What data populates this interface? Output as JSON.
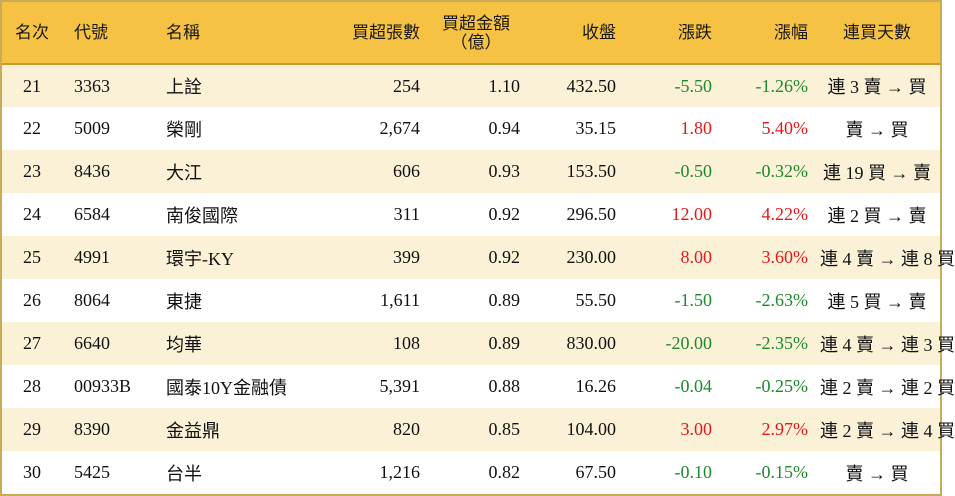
{
  "header": {
    "rank": "名次",
    "code": "代號",
    "name": "名稱",
    "net_buy_lots": "買超張數",
    "net_buy_amount_line1": "買超金額",
    "net_buy_amount_line2": "（億）",
    "close": "收盤",
    "change": "漲跌",
    "change_pct": "漲幅",
    "streak": "連買天數"
  },
  "colors": {
    "header_bg": "#f5c243",
    "stripe_bg": "#fbf1d7",
    "up": "#e4191c",
    "down": "#1d8a2c"
  },
  "rows": [
    {
      "rank": "21",
      "code": "3363",
      "name": "上詮",
      "lots": "254",
      "amount": "1.10",
      "close": "432.50",
      "change": "-5.50",
      "pct": "-1.26%",
      "streak": "連 3 賣 → 買",
      "dir": "down"
    },
    {
      "rank": "22",
      "code": "5009",
      "name": "榮剛",
      "lots": "2,674",
      "amount": "0.94",
      "close": "35.15",
      "change": "1.80",
      "pct": "5.40%",
      "streak": "賣 → 買",
      "dir": "up"
    },
    {
      "rank": "23",
      "code": "8436",
      "name": "大江",
      "lots": "606",
      "amount": "0.93",
      "close": "153.50",
      "change": "-0.50",
      "pct": "-0.32%",
      "streak": "連 19 買 → 賣",
      "dir": "down"
    },
    {
      "rank": "24",
      "code": "6584",
      "name": "南俊國際",
      "lots": "311",
      "amount": "0.92",
      "close": "296.50",
      "change": "12.00",
      "pct": "4.22%",
      "streak": "連 2 買 → 賣",
      "dir": "up"
    },
    {
      "rank": "25",
      "code": "4991",
      "name": "環宇-KY",
      "lots": "399",
      "amount": "0.92",
      "close": "230.00",
      "change": "8.00",
      "pct": "3.60%",
      "streak": "連 4 賣 → 連 8 買",
      "dir": "up"
    },
    {
      "rank": "26",
      "code": "8064",
      "name": "東捷",
      "lots": "1,611",
      "amount": "0.89",
      "close": "55.50",
      "change": "-1.50",
      "pct": "-2.63%",
      "streak": "連 5 買 → 賣",
      "dir": "down"
    },
    {
      "rank": "27",
      "code": "6640",
      "name": "均華",
      "lots": "108",
      "amount": "0.89",
      "close": "830.00",
      "change": "-20.00",
      "pct": "-2.35%",
      "streak": "連 4 賣 → 連 3 買",
      "dir": "down"
    },
    {
      "rank": "28",
      "code": "00933B",
      "name": "國泰10Y金融債",
      "lots": "5,391",
      "amount": "0.88",
      "close": "16.26",
      "change": "-0.04",
      "pct": "-0.25%",
      "streak": "連 2 賣 → 連 2 買",
      "dir": "down"
    },
    {
      "rank": "29",
      "code": "8390",
      "name": "金益鼎",
      "lots": "820",
      "amount": "0.85",
      "close": "104.00",
      "change": "3.00",
      "pct": "2.97%",
      "streak": "連 2 賣 → 連 4 買",
      "dir": "up"
    },
    {
      "rank": "30",
      "code": "5425",
      "name": "台半",
      "lots": "1,216",
      "amount": "0.82",
      "close": "67.50",
      "change": "-0.10",
      "pct": "-0.15%",
      "streak": "賣 → 買",
      "dir": "down"
    }
  ]
}
